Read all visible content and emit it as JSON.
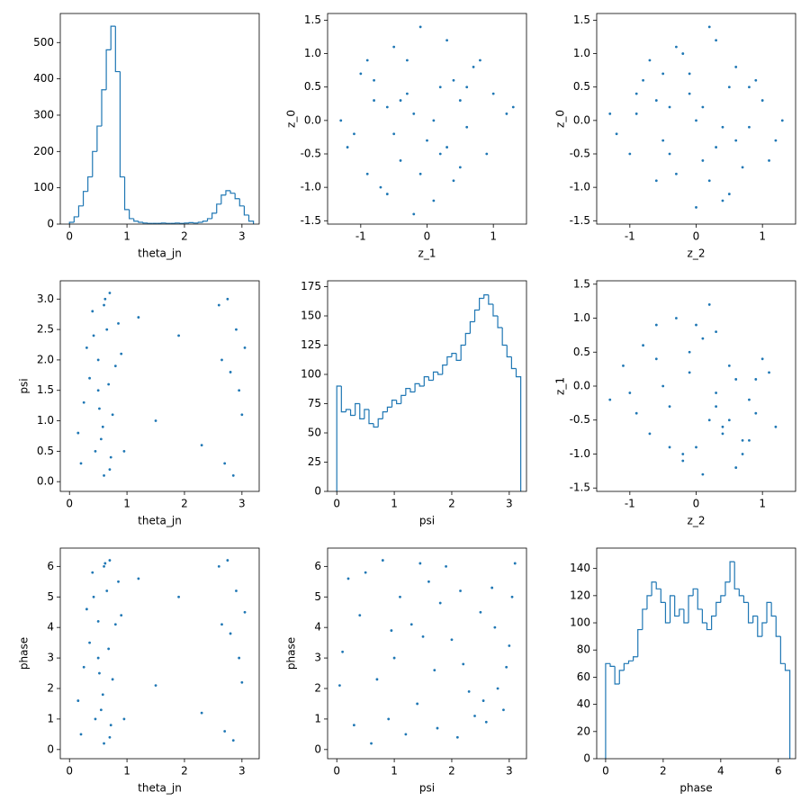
{
  "chart_data": [
    {
      "type": "histogram",
      "xlabel": "theta_jn",
      "color": "#1f77b4",
      "xlim": [
        -0.16,
        3.3
      ],
      "xticks": [
        0,
        1,
        2,
        3
      ],
      "ylim": [
        0,
        580
      ],
      "yticks": [
        0,
        100,
        200,
        300,
        400,
        500
      ],
      "bins": [
        0,
        0.08,
        0.16,
        0.24,
        0.32,
        0.4,
        0.48,
        0.56,
        0.64,
        0.72,
        0.8,
        0.88,
        0.96,
        1.04,
        1.12,
        1.2,
        1.28,
        1.36,
        1.44,
        1.52,
        1.6,
        1.68,
        1.76,
        1.84,
        1.92,
        2,
        2.08,
        2.16,
        2.24,
        2.32,
        2.4,
        2.48,
        2.56,
        2.64,
        2.72,
        2.8,
        2.88,
        2.96,
        3.04,
        3.12,
        3.2
      ],
      "values": [
        5,
        20,
        50,
        90,
        130,
        200,
        270,
        370,
        480,
        545,
        420,
        130,
        40,
        15,
        8,
        5,
        3,
        2,
        2,
        2,
        3,
        2,
        2,
        3,
        2,
        3,
        4,
        3,
        5,
        8,
        15,
        30,
        55,
        80,
        92,
        85,
        70,
        50,
        25,
        8
      ]
    },
    {
      "type": "scatter",
      "xlabel": "z_1",
      "ylabel": "z_0",
      "color": "#1f77b4",
      "xlim": [
        -1.5,
        1.5
      ],
      "xticks": [
        -1,
        0,
        1
      ],
      "ylim": [
        -1.55,
        1.6
      ],
      "yticks": [
        -1.5,
        {
          "value": -1,
          "label": "-1.0"
        },
        -0.5,
        {
          "value": 0,
          "label": "0.0"
        },
        0.5,
        {
          "value": 1,
          "label": "1.0"
        },
        1.5
      ],
      "x": [
        -0.2,
        0.3,
        -0.8,
        0.5,
        -1.1,
        0.9,
        -0.5,
        0.1,
        -0.3,
        0.7,
        -0.9,
        1.2,
        -1.3,
        0.4,
        -0.1,
        0.6,
        -0.6,
        0.2,
        -0.4,
        1.0,
        -0.7,
        0.0,
        -1.0,
        0.8,
        -0.2,
        0.3,
        -0.5,
        0.5,
        -0.8,
        0.1,
        -1.2,
        1.3,
        -0.3,
        0.6,
        -0.6,
        0.2,
        -0.1,
        -0.9,
        0.4,
        -0.4
      ],
      "y": [
        0.1,
        -0.4,
        0.6,
        0.3,
        -0.2,
        -0.5,
        1.1,
        -1.2,
        0.4,
        0.8,
        -0.8,
        0.1,
        0.0,
        -0.9,
        1.4,
        -0.1,
        0.2,
        0.5,
        -0.6,
        0.4,
        -1.0,
        -0.3,
        0.7,
        0.9,
        -1.4,
        1.2,
        -0.2,
        -0.7,
        0.3,
        0.0,
        -0.4,
        0.2,
        0.9,
        0.5,
        -1.1,
        -0.5,
        -0.8,
        0.9,
        0.6,
        0.3
      ]
    },
    {
      "type": "scatter",
      "xlabel": "z_2",
      "ylabel": "z_0",
      "color": "#1f77b4",
      "xlim": [
        -1.5,
        1.5
      ],
      "xticks": [
        -1,
        0,
        1
      ],
      "ylim": [
        -1.55,
        1.6
      ],
      "yticks": [
        -1.5,
        {
          "value": -1,
          "label": "-1.0"
        },
        -0.5,
        {
          "value": 0,
          "label": "0.0"
        },
        0.5,
        {
          "value": 1,
          "label": "1.0"
        },
        1.5
      ],
      "x": [
        0.1,
        -0.5,
        0.6,
        -0.9,
        0.3,
        1.1,
        -1.2,
        0.0,
        0.8,
        -0.3,
        0.4,
        -0.7,
        1.3,
        -0.1,
        0.5,
        -1.0,
        0.2,
        0.9,
        -0.4,
        -0.6,
        0.7,
        -0.2,
        1.0,
        -0.8,
        0.3,
        0.0,
        -0.5,
        0.6,
        -1.3,
        0.4,
        0.1,
        -0.9,
        0.8,
        -0.3,
        1.2,
        -0.6,
        0.2,
        -0.1,
        0.5,
        -0.4
      ],
      "y": [
        0.2,
        0.7,
        -0.3,
        0.1,
        1.2,
        -0.6,
        -0.2,
        -1.3,
        0.5,
        -0.8,
        -0.1,
        0.9,
        0.0,
        0.4,
        -1.1,
        -0.5,
        1.4,
        0.6,
        0.2,
        -0.9,
        -0.7,
        1.0,
        0.3,
        0.6,
        -0.4,
        0.0,
        -0.3,
        0.8,
        0.1,
        -1.2,
        -0.6,
        0.4,
        -0.1,
        1.1,
        -0.3,
        0.3,
        -0.9,
        0.7,
        0.5,
        -0.5
      ]
    },
    {
      "type": "scatter",
      "xlabel": "theta_jn",
      "ylabel": "psi",
      "color": "#1f77b4",
      "xlim": [
        -0.16,
        3.3
      ],
      "xticks": [
        0,
        1,
        2,
        3
      ],
      "ylim": [
        -0.16,
        3.3
      ],
      "yticks": [
        {
          "value": 0,
          "label": "0.0"
        },
        0.5,
        {
          "value": 1,
          "label": "1.0"
        },
        1.5,
        {
          "value": 2,
          "label": "2.0"
        },
        2.5,
        {
          "value": 3,
          "label": "3.0"
        }
      ],
      "x": [
        0.2,
        0.4,
        0.5,
        0.6,
        0.7,
        0.8,
        0.3,
        0.55,
        0.65,
        0.75,
        0.45,
        0.6,
        0.35,
        0.7,
        0.5,
        0.25,
        0.62,
        0.85,
        0.58,
        0.68,
        0.42,
        0.72,
        0.52,
        0.9,
        1.2,
        1.5,
        1.9,
        2.3,
        2.6,
        2.7,
        2.8,
        2.9,
        3.0,
        2.65,
        2.85,
        2.75,
        2.95,
        3.05,
        0.15,
        0.95
      ],
      "y": [
        0.3,
        2.8,
        1.5,
        0.1,
        3.1,
        1.9,
        2.2,
        0.7,
        2.5,
        1.1,
        0.5,
        2.9,
        1.7,
        0.2,
        2.0,
        1.3,
        3.0,
        2.6,
        0.9,
        1.6,
        2.4,
        0.4,
        1.2,
        2.1,
        2.7,
        1.0,
        2.4,
        0.6,
        2.9,
        0.3,
        1.8,
        2.5,
        1.1,
        2.0,
        0.1,
        3.0,
        1.5,
        2.2,
        0.8,
        0.5
      ]
    },
    {
      "type": "histogram",
      "xlabel": "psi",
      "color": "#1f77b4",
      "xlim": [
        -0.16,
        3.3
      ],
      "xticks": [
        0,
        1,
        2,
        3
      ],
      "ylim": [
        0,
        180
      ],
      "yticks": [
        0,
        25,
        50,
        75,
        100,
        125,
        150,
        175
      ],
      "bins": [
        0,
        0.08,
        0.16,
        0.24,
        0.32,
        0.4,
        0.48,
        0.56,
        0.64,
        0.72,
        0.8,
        0.88,
        0.96,
        1.04,
        1.12,
        1.2,
        1.28,
        1.36,
        1.44,
        1.52,
        1.6,
        1.68,
        1.76,
        1.84,
        1.92,
        2,
        2.08,
        2.16,
        2.24,
        2.32,
        2.4,
        2.48,
        2.56,
        2.64,
        2.72,
        2.8,
        2.88,
        2.96,
        3.04,
        3.12,
        3.2
      ],
      "values": [
        90,
        68,
        70,
        65,
        75,
        62,
        70,
        58,
        55,
        62,
        68,
        72,
        78,
        75,
        82,
        88,
        85,
        92,
        90,
        98,
        95,
        102,
        100,
        108,
        115,
        118,
        112,
        125,
        135,
        145,
        155,
        165,
        168,
        160,
        150,
        140,
        125,
        115,
        105,
        98
      ]
    },
    {
      "type": "scatter",
      "xlabel": "z_2",
      "ylabel": "z_1",
      "color": "#1f77b4",
      "xlim": [
        -1.5,
        1.5
      ],
      "xticks": [
        -1,
        0,
        1
      ],
      "ylim": [
        -1.55,
        1.55
      ],
      "yticks": [
        -1.5,
        {
          "value": -1,
          "label": "-1.0"
        },
        -0.5,
        {
          "value": 0,
          "label": "0.0"
        },
        0.5,
        {
          "value": 1,
          "label": "1.0"
        },
        1.5
      ],
      "x": [
        0.3,
        -0.6,
        0.8,
        -0.2,
        1.1,
        0.0,
        -1.0,
        0.5,
        0.2,
        -0.4,
        0.9,
        -0.8,
        0.6,
        0.1,
        -1.3,
        0.4,
        -0.1,
        0.7,
        1.2,
        -0.5,
        0.3,
        -0.9,
        0.5,
        0.0,
        -0.3,
        0.8,
        -0.7,
        0.2,
        1.0,
        -0.1,
        0.6,
        -0.4,
        0.4,
        -1.1,
        0.1,
        0.7,
        -0.2,
        0.9,
        -0.6,
        0.3
      ],
      "y": [
        -0.3,
        0.4,
        -0.8,
        -1.1,
        0.2,
        0.9,
        -0.1,
        -0.5,
        1.2,
        -0.9,
        -0.4,
        0.6,
        0.1,
        -1.3,
        -0.2,
        -0.7,
        0.5,
        -1.0,
        -0.6,
        0.0,
        0.8,
        -0.4,
        0.3,
        -0.9,
        1.0,
        -0.2,
        -0.7,
        -0.5,
        0.4,
        0.2,
        -1.2,
        -0.3,
        -0.6,
        0.3,
        0.7,
        -0.8,
        -1.0,
        0.1,
        0.9,
        -0.1
      ]
    },
    {
      "type": "scatter",
      "xlabel": "theta_jn",
      "ylabel": "phase",
      "color": "#1f77b4",
      "xlim": [
        -0.16,
        3.3
      ],
      "xticks": [
        0,
        1,
        2,
        3
      ],
      "ylim": [
        -0.3,
        6.6
      ],
      "yticks": [
        0,
        1,
        2,
        3,
        4,
        5,
        6
      ],
      "x": [
        0.2,
        0.4,
        0.5,
        0.6,
        0.7,
        0.8,
        0.3,
        0.55,
        0.65,
        0.75,
        0.45,
        0.6,
        0.35,
        0.7,
        0.5,
        0.25,
        0.62,
        0.85,
        0.58,
        0.68,
        0.42,
        0.72,
        0.52,
        0.9,
        1.2,
        1.5,
        1.9,
        2.3,
        2.6,
        2.7,
        2.8,
        2.9,
        3.0,
        2.65,
        2.85,
        2.75,
        2.95,
        3.05,
        0.15,
        0.95
      ],
      "y": [
        0.5,
        5.8,
        3.0,
        0.2,
        6.2,
        4.1,
        4.6,
        1.3,
        5.2,
        2.3,
        1.0,
        6.0,
        3.5,
        0.4,
        4.2,
        2.7,
        6.1,
        5.5,
        1.8,
        3.3,
        5.0,
        0.8,
        2.5,
        4.4,
        5.6,
        2.1,
        5.0,
        1.2,
        6.0,
        0.6,
        3.8,
        5.2,
        2.2,
        4.1,
        0.3,
        6.2,
        3.0,
        4.5,
        1.6,
        1.0
      ]
    },
    {
      "type": "scatter",
      "xlabel": "psi",
      "ylabel": "phase",
      "color": "#1f77b4",
      "xlim": [
        -0.16,
        3.3
      ],
      "xticks": [
        0,
        1,
        2,
        3
      ],
      "ylim": [
        -0.3,
        6.6
      ],
      "yticks": [
        0,
        1,
        2,
        3,
        4,
        5,
        6
      ],
      "x": [
        0.1,
        0.5,
        0.9,
        1.3,
        1.7,
        2.1,
        2.5,
        2.9,
        3.1,
        0.3,
        0.7,
        1.1,
        1.5,
        1.9,
        2.3,
        2.7,
        3.0,
        0.2,
        0.6,
        1.0,
        1.4,
        1.8,
        2.2,
        2.6,
        2.8,
        0.4,
        0.8,
        1.2,
        1.6,
        2.0,
        2.4,
        2.75,
        3.05,
        0.05,
        0.95,
        1.75,
        2.55,
        2.95,
        1.45,
        2.15
      ],
      "y": [
        3.2,
        5.8,
        1.0,
        4.1,
        2.6,
        0.4,
        4.5,
        1.3,
        6.1,
        0.8,
        2.3,
        5.0,
        3.7,
        6.0,
        1.9,
        5.3,
        3.4,
        5.6,
        0.2,
        3.0,
        1.5,
        4.8,
        2.8,
        0.9,
        2.0,
        4.4,
        6.2,
        0.5,
        5.5,
        3.6,
        1.1,
        4.0,
        5.0,
        2.1,
        3.9,
        0.7,
        1.6,
        2.7,
        6.1,
        5.2
      ]
    },
    {
      "type": "histogram",
      "xlabel": "phase",
      "color": "#1f77b4",
      "xlim": [
        -0.31,
        6.6
      ],
      "xticks": [
        0,
        2,
        4,
        6
      ],
      "ylim": [
        0,
        155
      ],
      "yticks": [
        0,
        20,
        40,
        60,
        80,
        100,
        120,
        140
      ],
      "bins": [
        0,
        0.16,
        0.32,
        0.48,
        0.64,
        0.8,
        0.96,
        1.12,
        1.28,
        1.44,
        1.6,
        1.76,
        1.92,
        2.08,
        2.24,
        2.4,
        2.56,
        2.72,
        2.88,
        3.04,
        3.2,
        3.36,
        3.52,
        3.68,
        3.84,
        4,
        4.16,
        4.32,
        4.48,
        4.64,
        4.8,
        4.96,
        5.12,
        5.28,
        5.44,
        5.6,
        5.76,
        5.92,
        6.08,
        6.24,
        6.4
      ],
      "values": [
        70,
        68,
        55,
        65,
        70,
        72,
        75,
        95,
        110,
        120,
        130,
        125,
        115,
        100,
        120,
        105,
        110,
        100,
        120,
        125,
        110,
        100,
        95,
        105,
        115,
        120,
        130,
        145,
        125,
        120,
        115,
        100,
        105,
        90,
        100,
        115,
        105,
        90,
        70,
        65
      ]
    }
  ]
}
